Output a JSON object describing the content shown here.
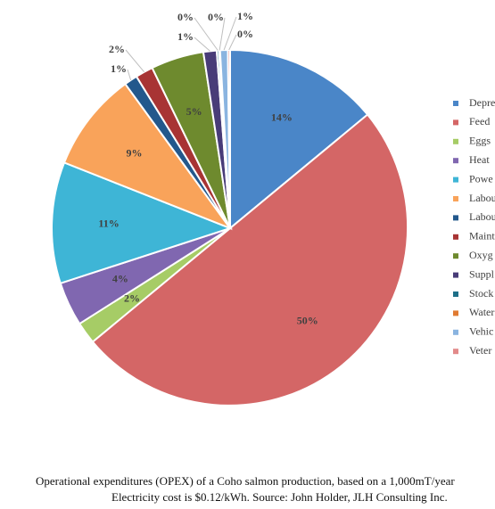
{
  "chart_data": {
    "type": "pie",
    "start_angle_deg": 0,
    "direction": "clockwise",
    "legend_position": "right",
    "series": [
      {
        "name": "Depre",
        "value": 14,
        "label": "14%",
        "color": "#4a86c8",
        "label_style": "inside"
      },
      {
        "name": "Feed",
        "value": 50,
        "label": "50%",
        "color": "#d46666",
        "label_style": "inside"
      },
      {
        "name": "Eggs",
        "value": 2,
        "label": "2%",
        "color": "#a6cc66",
        "label_style": "inside"
      },
      {
        "name": "Heat",
        "value": 4,
        "label": "4%",
        "color": "#8067b0",
        "label_style": "inside"
      },
      {
        "name": "Powe",
        "value": 11,
        "label": "11%",
        "color": "#3eb5d6",
        "label_style": "inside"
      },
      {
        "name": "Labou",
        "value": 9,
        "label": "9%",
        "color": "#f9a35a",
        "label_style": "inside"
      },
      {
        "name": "Labou",
        "value": 1.2,
        "label": "1%",
        "color": "#23588c",
        "label_style": "outside"
      },
      {
        "name": "Maint",
        "value": 1.6,
        "label": "2%",
        "color": "#a83434",
        "label_style": "outside"
      },
      {
        "name": "Oxyg",
        "value": 4.8,
        "label": "5%",
        "color": "#6e8a2e",
        "label_style": "inside"
      },
      {
        "name": "Suppl",
        "value": 1.2,
        "label": "1%",
        "color": "#483c78",
        "label_style": "outside"
      },
      {
        "name": "Stock",
        "value": 0.2,
        "label": "0%",
        "color": "#1e6f88",
        "label_style": "outside"
      },
      {
        "name": "Water",
        "value": 0.1,
        "label": "0%",
        "color": "#e07b32",
        "label_style": "outside"
      },
      {
        "name": "Vehic",
        "value": 0.7,
        "label": "1%",
        "color": "#8ab4e0",
        "label_style": "outside"
      },
      {
        "name": "Veter",
        "value": 0.2,
        "label": "0%",
        "color": "#e28a8a",
        "label_style": "outside"
      }
    ]
  },
  "caption": {
    "line1": "Operational expenditures (OPEX) of a Coho salmon production, based on a 1,000mT/year",
    "line2": "Electricity  cost is $0.12/kWh.  Source: John Holder, JLH Consulting Inc."
  }
}
